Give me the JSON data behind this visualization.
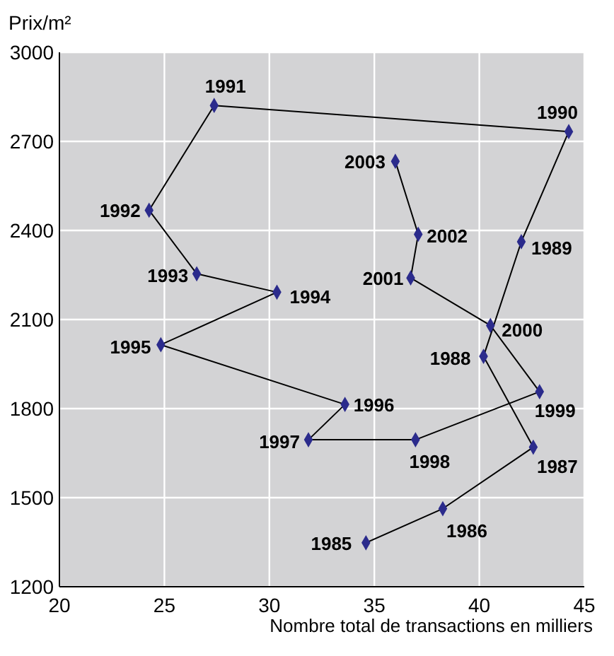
{
  "chart_data": {
    "type": "line",
    "ylabel": "Prix/m²",
    "xlabel": "Nombre total de transactions en milliers",
    "xlim": [
      20,
      45
    ],
    "xticks": [
      20,
      25,
      30,
      35,
      40,
      45
    ],
    "ylim": [
      1200,
      3000
    ],
    "yticks": [
      1200,
      1500,
      1800,
      2100,
      2400,
      2700,
      3000
    ],
    "grid": true,
    "marker": "diamond",
    "line_style": "solid",
    "series": [
      {
        "color": "#2b2b8c",
        "x": [
          34.6,
          38.26,
          42.57,
          40.2,
          42.0,
          44.26,
          27.37,
          24.27,
          26.54,
          30.36,
          24.83,
          33.6,
          31.86,
          36.96,
          42.87,
          40.53,
          36.73,
          37.09,
          36.0
        ],
        "values": [
          1348,
          1463,
          1670,
          1976,
          2362,
          2733,
          2821,
          2468,
          2254,
          2192,
          2015,
          1814,
          1695,
          1695,
          1857,
          2080,
          2240,
          2387,
          2633
        ]
      }
    ],
    "annotations": [
      {
        "text": "1985",
        "x": 34.6,
        "y": 1348
      },
      {
        "text": "1986",
        "x": 38.26,
        "y": 1463
      },
      {
        "text": "1987",
        "x": 42.57,
        "y": 1670
      },
      {
        "text": "1988",
        "x": 40.2,
        "y": 1976
      },
      {
        "text": "1989",
        "x": 42.0,
        "y": 2362
      },
      {
        "text": "1990",
        "x": 44.26,
        "y": 2733
      },
      {
        "text": "1991",
        "x": 27.37,
        "y": 2821
      },
      {
        "text": "1992",
        "x": 24.27,
        "y": 2468
      },
      {
        "text": "1993",
        "x": 26.54,
        "y": 2254
      },
      {
        "text": "1994",
        "x": 30.36,
        "y": 2192
      },
      {
        "text": "1995",
        "x": 24.83,
        "y": 2015
      },
      {
        "text": "1996",
        "x": 33.6,
        "y": 1814
      },
      {
        "text": "1997",
        "x": 31.86,
        "y": 1695
      },
      {
        "text": "1998",
        "x": 36.96,
        "y": 1695
      },
      {
        "text": "1999",
        "x": 42.87,
        "y": 1857
      },
      {
        "text": "2000",
        "x": 40.53,
        "y": 2080
      },
      {
        "text": "2001",
        "x": 36.73,
        "y": 2240
      },
      {
        "text": "2002",
        "x": 37.09,
        "y": 2387
      },
      {
        "text": "2003",
        "x": 36.0,
        "y": 2633
      }
    ]
  }
}
